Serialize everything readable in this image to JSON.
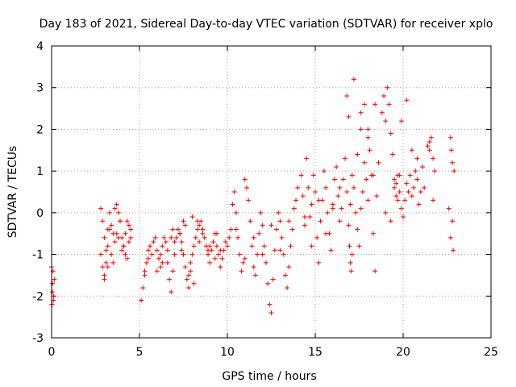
{
  "chart_data": {
    "type": "scatter",
    "title": "Day 183 of 2021, Sidereal Day-to-day VTEC variation (SDTVAR) for receiver xplo",
    "xlabel": "GPS time / hours",
    "ylabel": "SDTVAR / TECUs",
    "xlim": [
      0,
      25
    ],
    "ylim": [
      -3,
      4
    ],
    "xticks": [
      0,
      5,
      10,
      15,
      20,
      25
    ],
    "yticks": [
      -3,
      -2,
      -1,
      0,
      1,
      2,
      3,
      4
    ],
    "xtick_labels": [
      "0",
      "5",
      "10",
      "15",
      "20",
      "25"
    ],
    "ytick_labels": [
      "-3",
      "-2",
      "-1",
      "0",
      "1",
      "2",
      "3",
      "4"
    ],
    "grid": true,
    "marker": "+",
    "color": "#ff0000",
    "series": [
      {
        "name": "SDTVAR",
        "x": [
          0.0,
          0.05,
          0.1,
          0.15,
          0.02,
          0.08,
          0.12,
          0.04,
          2.8,
          2.9,
          3.0,
          3.1,
          3.2,
          3.3,
          3.4,
          3.5,
          3.6,
          3.7,
          3.8,
          3.9,
          4.0,
          4.1,
          4.2,
          4.3,
          4.4,
          4.5,
          3.0,
          3.2,
          3.4,
          3.6,
          3.8,
          4.0,
          4.2,
          4.4,
          2.8,
          2.9,
          3.0,
          3.1,
          3.2,
          3.3,
          3.5,
          3.7,
          3.9,
          4.1,
          4.3,
          4.5,
          5.1,
          5.2,
          5.3,
          5.4,
          5.5,
          5.6,
          5.7,
          5.8,
          5.9,
          6.0,
          6.1,
          6.2,
          6.3,
          6.4,
          6.5,
          6.6,
          6.7,
          6.8,
          6.9,
          7.0,
          7.1,
          7.2,
          7.3,
          7.4,
          7.5,
          7.6,
          7.7,
          7.8,
          7.9,
          8.0,
          8.1,
          8.2,
          8.3,
          8.4,
          8.5,
          8.6,
          8.7,
          8.8,
          8.9,
          9.0,
          9.1,
          9.2,
          9.3,
          9.4,
          9.5,
          9.6,
          9.7,
          9.8,
          9.9,
          6.0,
          6.3,
          6.6,
          7.0,
          7.3,
          7.6,
          8.0,
          8.3,
          8.6,
          9.0,
          9.3,
          9.6,
          6.2,
          6.8,
          7.4,
          7.9,
          8.4,
          8.9,
          9.4,
          5.3,
          5.5,
          6.9,
          7.5,
          7.8,
          8.1,
          10.0,
          10.1,
          10.2,
          10.3,
          10.4,
          10.5,
          10.6,
          10.7,
          10.8,
          10.9,
          11.0,
          11.1,
          11.2,
          11.3,
          11.4,
          11.5,
          11.6,
          11.7,
          11.8,
          11.9,
          12.0,
          12.1,
          12.2,
          12.3,
          12.4,
          12.5,
          12.6,
          12.7,
          12.8,
          12.9,
          13.0,
          13.1,
          13.2,
          13.3,
          13.4,
          13.5,
          13.6,
          13.7,
          13.8,
          13.9,
          14.0,
          10.5,
          11.0,
          11.5,
          12.0,
          12.5,
          13.0,
          13.5,
          14.2,
          14.3,
          14.4,
          14.5,
          14.6,
          14.7,
          14.8,
          14.9,
          15.0,
          15.1,
          15.2,
          15.3,
          15.4,
          15.5,
          15.6,
          15.7,
          15.8,
          15.9,
          16.0,
          16.1,
          16.2,
          16.3,
          16.4,
          16.5,
          16.6,
          16.7,
          16.8,
          16.9,
          17.0,
          17.1,
          17.2,
          17.3,
          17.4,
          17.5,
          17.6,
          17.7,
          17.8,
          17.9,
          18.0,
          18.1,
          18.2,
          18.3,
          18.4,
          18.5,
          14.4,
          14.8,
          15.2,
          15.6,
          16.0,
          16.4,
          16.8,
          17.2,
          17.6,
          18.0,
          18.4,
          16.9,
          17.0,
          17.05,
          17.1,
          16.95,
          18.3,
          17.4,
          17.6,
          17.8,
          18.0,
          18.6,
          18.8,
          18.9,
          19.0,
          19.1,
          19.2,
          19.3,
          19.4,
          19.5,
          19.6,
          19.7,
          19.8,
          19.9,
          20.0,
          20.1,
          20.2,
          20.3,
          20.4,
          20.5,
          20.6,
          20.7,
          20.8,
          20.9,
          21.0,
          21.1,
          21.2,
          19.0,
          19.3,
          19.6,
          19.9,
          20.2,
          20.5,
          20.8,
          21.1,
          19.5,
          19.7,
          19.8,
          21.4,
          21.5,
          21.6,
          21.7,
          21.8,
          21.5,
          21.7,
          22.6,
          22.7,
          22.8,
          22.9,
          22.75,
          22.8,
          22.7,
          22.85
        ],
        "y": [
          -1.3,
          -1.7,
          -2.1,
          -1.6,
          -2.2,
          -1.4,
          -2.0,
          -1.9,
          0.1,
          -0.2,
          -0.6,
          -0.9,
          -0.4,
          0.0,
          -0.3,
          -0.5,
          0.1,
          0.2,
          0.0,
          -0.2,
          -0.6,
          -0.8,
          -0.5,
          -0.2,
          -0.3,
          -0.4,
          -1.5,
          -1.3,
          -1.0,
          -0.7,
          -0.6,
          -0.9,
          -1.0,
          -0.7,
          -1.0,
          -1.3,
          -1.6,
          -1.2,
          -0.8,
          -0.4,
          -1.2,
          -0.5,
          -0.2,
          -0.8,
          -1.1,
          -0.6,
          -2.1,
          -1.8,
          -1.5,
          -1.2,
          -0.9,
          -0.8,
          -1.0,
          -0.7,
          -0.6,
          -0.9,
          -1.1,
          -1.3,
          -0.8,
          -0.6,
          -0.7,
          -1.2,
          -1.6,
          -1.9,
          -1.4,
          -1.0,
          -0.6,
          -0.4,
          -0.5,
          -0.7,
          -1.0,
          -1.3,
          -1.6,
          -1.8,
          -1.4,
          -1.0,
          -0.8,
          -0.6,
          -0.4,
          -0.3,
          -0.2,
          -0.4,
          -0.6,
          -0.8,
          -1.0,
          -1.2,
          -0.9,
          -0.7,
          -0.5,
          -0.8,
          -1.0,
          -1.3,
          -1.1,
          -0.9,
          -0.7,
          -1.4,
          -1.2,
          -0.9,
          -0.7,
          -0.5,
          -0.3,
          -0.1,
          -0.2,
          -0.5,
          -0.8,
          -1.1,
          -0.9,
          -1.0,
          -0.6,
          -0.9,
          -1.2,
          -0.7,
          -0.9,
          -0.5,
          -1.4,
          -1.1,
          -0.4,
          -0.2,
          -1.5,
          -1.7,
          -0.8,
          -0.6,
          -0.4,
          0.2,
          0.5,
          0.0,
          -0.6,
          -1.0,
          -1.4,
          -1.2,
          0.8,
          0.6,
          0.3,
          -0.2,
          -0.8,
          -1.3,
          -1.5,
          -1.0,
          -0.5,
          0.0,
          -0.3,
          -0.8,
          -1.2,
          -1.7,
          -2.2,
          -2.4,
          -1.6,
          -0.9,
          -0.4,
          0.0,
          -0.2,
          -0.6,
          -1.0,
          -1.5,
          -1.8,
          -1.3,
          -0.8,
          -0.4,
          0.1,
          0.3,
          0.6,
          -0.4,
          -1.1,
          -0.6,
          -1.0,
          -0.3,
          -0.9,
          -0.2,
          0.9,
          0.4,
          -0.3,
          1.3,
          0.6,
          -0.1,
          0.2,
          0.9,
          0.5,
          -0.6,
          -1.2,
          -0.2,
          0.3,
          1.0,
          0.6,
          0.0,
          -0.5,
          -0.9,
          0.2,
          0.8,
          1.1,
          0.4,
          -0.2,
          0.1,
          0.8,
          1.3,
          0.5,
          -0.3,
          0.2,
          0.9,
          0.6,
          0.0,
          -0.4,
          -0.8,
          0.1,
          0.5,
          1.2,
          0.8,
          0.3,
          1.5,
          0.9,
          -0.5,
          -1.4,
          0.4,
          -0.1,
          -0.8,
          0.3,
          -0.5,
          0.1,
          0.6,
          2.8,
          3.2,
          2.4,
          2.0,
          2.6,
          2.3,
          -1.2,
          -1.4,
          -1.0,
          -0.8,
          0.9,
          1.4,
          2.0,
          2.6,
          1.8,
          1.2,
          2.4,
          2.8,
          2.2,
          3.0,
          2.6,
          1.9,
          1.4,
          0.8,
          0.4,
          0.9,
          0.5,
          0.1,
          -0.1,
          0.3,
          0.7,
          0.5,
          0.9,
          0.4,
          0.6,
          1.0,
          0.8,
          0.2,
          0.5,
          1.1,
          0.6,
          0.0,
          -0.2,
          0.7,
          2.2,
          2.7,
          1.5,
          1.3,
          1.1,
          0.6,
          0.3,
          0.9,
          1.6,
          1.7,
          1.8,
          1.3,
          1.0,
          1.5,
          0.3,
          0.1,
          1.8,
          1.2,
          1.0,
          1.5,
          -0.2,
          -0.6,
          -0.9
        ]
      }
    ]
  }
}
